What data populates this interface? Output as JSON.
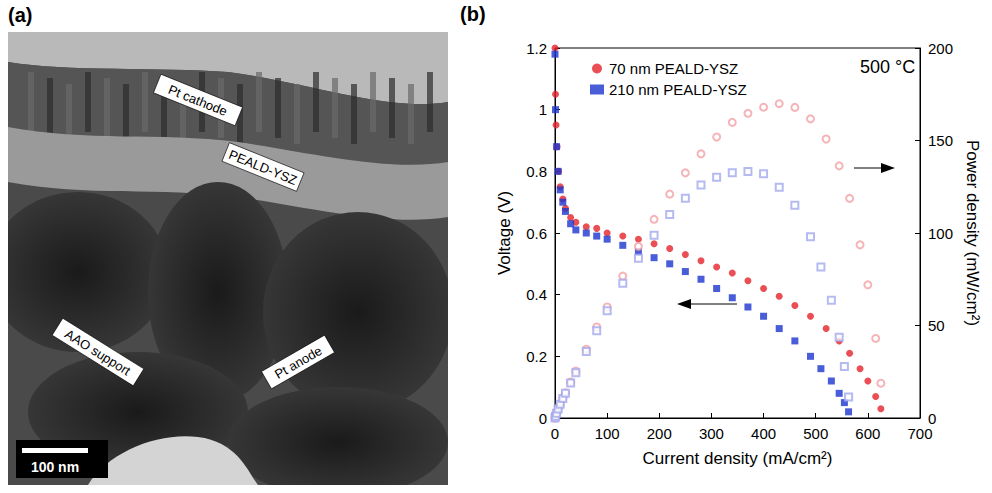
{
  "panel_a": {
    "letter": "(a)",
    "labels": [
      "Pt cathode",
      "PEALD-YSZ",
      "AAO support",
      "Pt anode"
    ],
    "scale_bar": "100 nm"
  },
  "chart_data": {
    "type": "scatter",
    "letter": "(b)",
    "xlabel": "Current density (mA/cm²)",
    "ylabel": "Voltage (V)",
    "y2label": "Power density (mW/cm²)",
    "annotations": [
      "500 °C"
    ],
    "xlim": [
      0,
      700
    ],
    "xticks": [
      0,
      100,
      200,
      300,
      400,
      500,
      600,
      700
    ],
    "ylim": [
      0,
      1.2
    ],
    "yticks": [
      0,
      0.2,
      0.4,
      0.6,
      0.8,
      1,
      1.2
    ],
    "y2lim": [
      0,
      200
    ],
    "y2ticks": [
      0,
      50,
      100,
      150,
      200
    ],
    "grid": false,
    "legend": "upper left",
    "series": [
      {
        "name": "70 nm PEALD-YSZ",
        "color": "#e3232b",
        "marker": "circle",
        "axis": "y",
        "x": [
          0,
          1,
          2,
          4,
          7,
          10,
          15,
          20,
          30,
          40,
          60,
          80,
          100,
          130,
          160,
          190,
          220,
          250,
          280,
          310,
          340,
          370,
          400,
          430,
          460,
          490,
          520,
          545,
          565,
          585,
          600,
          615,
          625
        ],
        "values": [
          1.2,
          1.05,
          0.95,
          0.88,
          0.8,
          0.75,
          0.71,
          0.68,
          0.65,
          0.635,
          0.62,
          0.615,
          0.6,
          0.59,
          0.58,
          0.565,
          0.55,
          0.53,
          0.51,
          0.49,
          0.47,
          0.445,
          0.42,
          0.395,
          0.365,
          0.33,
          0.29,
          0.25,
          0.21,
          0.16,
          0.12,
          0.07,
          0.03
        ]
      },
      {
        "name": "210 nm PEALD-YSZ",
        "color": "#1d35d0",
        "marker": "square",
        "axis": "y",
        "x": [
          0,
          1,
          3,
          6,
          10,
          15,
          20,
          30,
          40,
          60,
          80,
          100,
          130,
          160,
          190,
          220,
          250,
          280,
          310,
          340,
          370,
          400,
          430,
          460,
          490,
          510,
          530,
          545,
          555,
          563
        ],
        "values": [
          1.18,
          1.0,
          0.88,
          0.8,
          0.74,
          0.7,
          0.67,
          0.63,
          0.61,
          0.6,
          0.59,
          0.58,
          0.56,
          0.54,
          0.52,
          0.5,
          0.475,
          0.45,
          0.42,
          0.39,
          0.36,
          0.33,
          0.29,
          0.25,
          0.2,
          0.16,
          0.12,
          0.08,
          0.05,
          0.02
        ]
      },
      {
        "color": "#f2a3a6",
        "marker": "open_circle",
        "axis": "y2",
        "x": [
          0,
          1,
          2,
          4,
          7,
          10,
          15,
          20,
          30,
          40,
          60,
          80,
          100,
          130,
          160,
          190,
          220,
          250,
          280,
          310,
          340,
          370,
          400,
          430,
          460,
          490,
          520,
          545,
          565,
          585,
          600,
          615,
          625
        ],
        "values": [
          0,
          1.05,
          1.9,
          3.5,
          5.6,
          7.5,
          10.7,
          13.6,
          19.5,
          25.4,
          37.2,
          49.2,
          60,
          76.7,
          92.8,
          107.4,
          121,
          132.5,
          142.8,
          151.9,
          159.8,
          164.7,
          168,
          169.9,
          167.9,
          161.7,
          150.8,
          136.3,
          118.7,
          93.6,
          72,
          43,
          18.8
        ]
      },
      {
        "color": "#a3a9ee",
        "marker": "open_square",
        "axis": "y2",
        "x": [
          0,
          1,
          3,
          6,
          10,
          15,
          20,
          30,
          40,
          60,
          80,
          100,
          130,
          160,
          190,
          220,
          250,
          280,
          310,
          340,
          370,
          400,
          430,
          460,
          490,
          510,
          530,
          545,
          555,
          563
        ],
        "values": [
          0,
          1,
          2.6,
          4.8,
          7.4,
          10.5,
          13.4,
          18.9,
          24.4,
          36,
          47.2,
          58,
          72.8,
          86.4,
          98.8,
          110,
          118.8,
          126,
          130.2,
          132.6,
          133.2,
          132,
          124.7,
          115,
          98,
          81.6,
          63.6,
          43.6,
          27.8,
          11.3
        ]
      }
    ]
  }
}
